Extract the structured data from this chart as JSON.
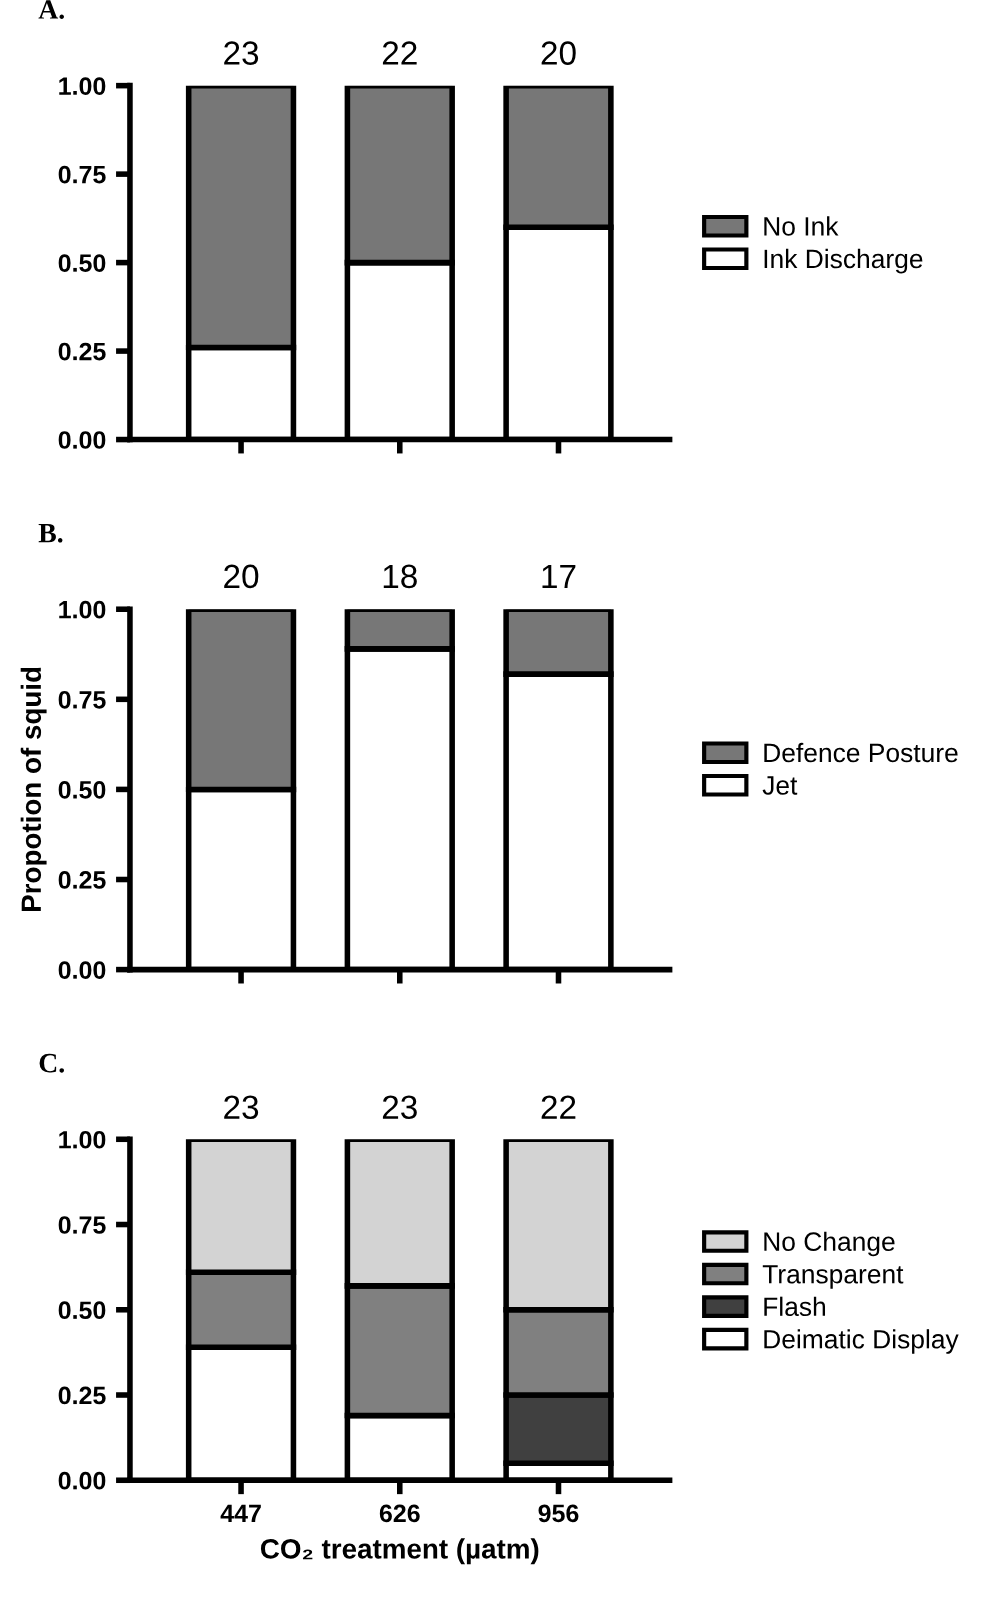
{
  "chart_data": [
    {
      "type": "bar",
      "title": "A.",
      "categories": [
        "447",
        "626",
        "956"
      ],
      "stacked": true,
      "tick_labels": "y",
      "legend": "right",
      "ylim": [
        0,
        1
      ],
      "yticks": [
        {
          "value": 0,
          "label": "0.00"
        },
        {
          "value": 0.25,
          "label": "0.25"
        },
        {
          "value": 0.5,
          "label": "0.50"
        },
        {
          "value": 0.75,
          "label": "0.75"
        },
        {
          "value": 1,
          "label": "1.00"
        }
      ],
      "grid": false,
      "annotations": [
        "23",
        "22",
        "20"
      ],
      "series": [
        {
          "name": "Ink Discharge",
          "color": "#ffffff",
          "values": [
            0.26,
            0.5,
            0.6
          ]
        },
        {
          "name": "No Ink",
          "color": "#777777",
          "values": [
            0.74,
            0.5,
            0.4
          ]
        }
      ]
    },
    {
      "type": "bar",
      "title": "B.",
      "ylabel": "Propotion of squid",
      "categories": [
        "447",
        "626",
        "956"
      ],
      "stacked": true,
      "tick_labels": "y",
      "legend": "right",
      "ylim": [
        0,
        1
      ],
      "yticks": [
        {
          "value": 0,
          "label": "0.00"
        },
        {
          "value": 0.25,
          "label": "0.25"
        },
        {
          "value": 0.5,
          "label": "0.50"
        },
        {
          "value": 0.75,
          "label": "0.75"
        },
        {
          "value": 1,
          "label": "1.00"
        }
      ],
      "grid": false,
      "annotations": [
        "20",
        "18",
        "17"
      ],
      "series": [
        {
          "name": "Jet",
          "color": "#ffffff",
          "values": [
            0.5,
            0.89,
            0.82
          ]
        },
        {
          "name": "Defence Posture",
          "color": "#777777",
          "values": [
            0.5,
            0.11,
            0.18
          ]
        }
      ]
    },
    {
      "type": "bar",
      "title": "C.",
      "xlabel": "CO₂ treatment (µatm)",
      "categories": [
        "447",
        "626",
        "956"
      ],
      "stacked": true,
      "legend": "right",
      "ylim": [
        0,
        1
      ],
      "yticks": [
        {
          "value": 0,
          "label": "0.00"
        },
        {
          "value": 0.25,
          "label": "0.25"
        },
        {
          "value": 0.5,
          "label": "0.50"
        },
        {
          "value": 0.75,
          "label": "0.75"
        },
        {
          "value": 1,
          "label": "1.00"
        }
      ],
      "grid": false,
      "annotations": [
        "23",
        "23",
        "22"
      ],
      "series": [
        {
          "name": "Deimatic Display",
          "color": "#ffffff",
          "values": [
            0.39,
            0.19,
            0.05
          ]
        },
        {
          "name": "Flash",
          "color": "#404040",
          "values": [
            0,
            0,
            0.2
          ]
        },
        {
          "name": "Transparent",
          "color": "#808080",
          "values": [
            0.22,
            0.38,
            0.25
          ]
        },
        {
          "name": "No Change",
          "color": "#d3d3d3",
          "values": [
            0.39,
            0.43,
            0.5
          ]
        }
      ]
    }
  ]
}
